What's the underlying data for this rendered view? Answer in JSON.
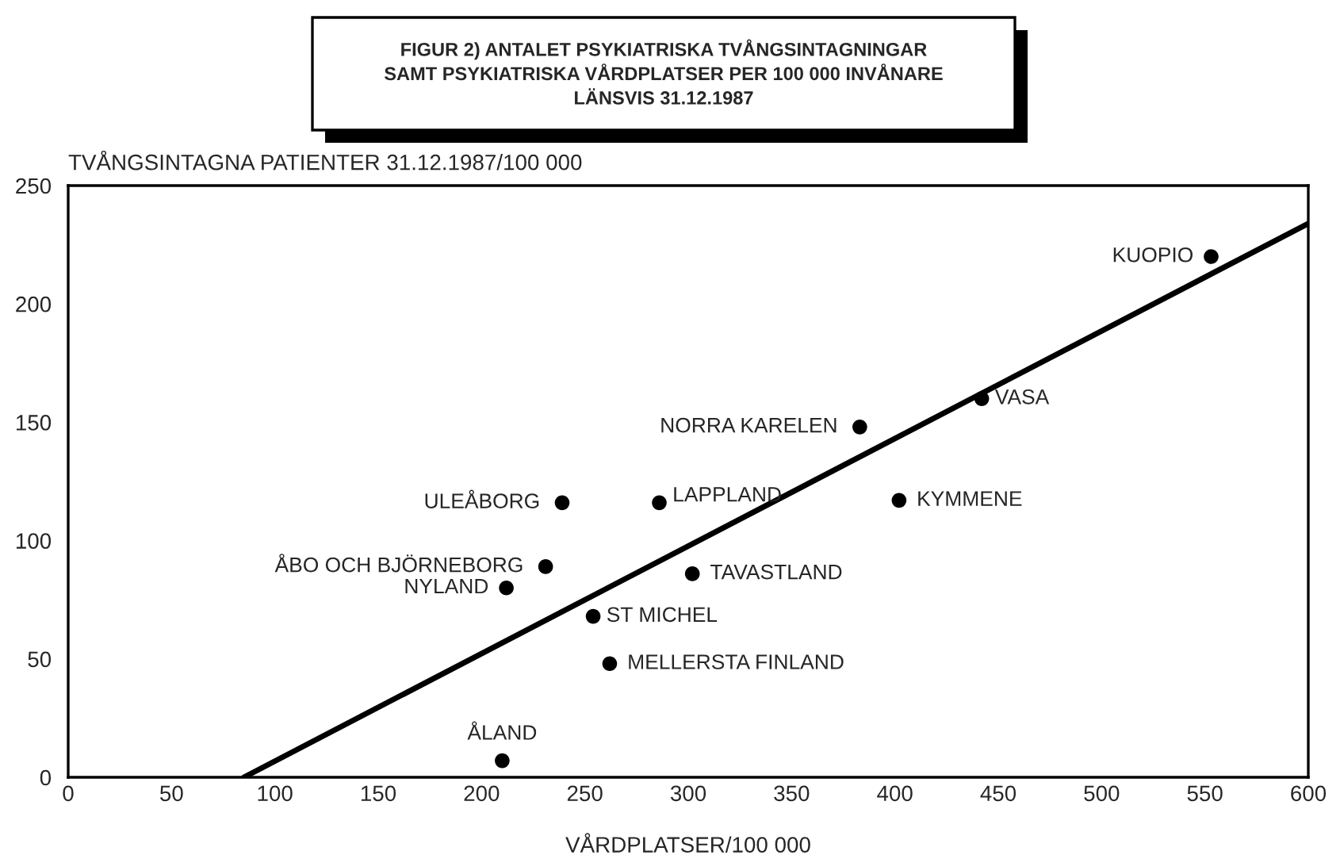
{
  "chart_data": {
    "type": "scatter",
    "title": "FIGUR 2) ANTALET PSYKIATRISKA TVÅNGSINTAGNINGAR\nSAMT PSYKIATRISKA VÅRDPLATSER PER 100 000 INVÅNARE\nLÄNSVIS 31.12.1987",
    "xlabel": "VÅRDPLATSER/100 000",
    "ylabel": "TVÅNGSINTAGNA PATIENTER 31.12.1987/100 000",
    "series": [
      {
        "color": "#000000",
        "marker": "circle",
        "x": [
          553,
          442,
          383,
          402,
          286,
          302,
          239,
          231,
          212,
          254,
          262,
          210
        ],
        "values": [
          220,
          160,
          148,
          117,
          116,
          86,
          116,
          89,
          80,
          68,
          48,
          7
        ]
      },
      {
        "type": "line",
        "color": "#000000",
        "line_style": "solid",
        "marker": "none",
        "x": [
          85,
          600
        ],
        "values": [
          0,
          234
        ]
      }
    ],
    "annotations": [
      {
        "text": "KUOPIO",
        "x": 553,
        "y": 220
      },
      {
        "text": "VASA",
        "x": 442,
        "y": 160
      },
      {
        "text": "NORRA KARELEN",
        "x": 383,
        "y": 148
      },
      {
        "text": "KYMMENE",
        "x": 402,
        "y": 117
      },
      {
        "text": "LAPPLAND",
        "x": 286,
        "y": 116
      },
      {
        "text": "TAVASTLAND",
        "x": 302,
        "y": 86
      },
      {
        "text": "ULEÅBORG",
        "x": 239,
        "y": 116
      },
      {
        "text": "ÅBO OCH BJÖRNEBORG",
        "x": 231,
        "y": 89
      },
      {
        "text": "NYLAND",
        "x": 212,
        "y": 80
      },
      {
        "text": "ST MICHEL",
        "x": 254,
        "y": 68
      },
      {
        "text": "MELLERSTA FINLAND",
        "x": 262,
        "y": 48
      },
      {
        "text": "ÅLAND",
        "x": 210,
        "y": 7
      }
    ],
    "xlim": [
      0,
      600
    ],
    "xticks": [
      0,
      50,
      100,
      150,
      200,
      250,
      300,
      350,
      400,
      450,
      500,
      550,
      600
    ],
    "ylim": [
      0,
      250
    ],
    "yticks": [
      0,
      50,
      100,
      150,
      200,
      250
    ],
    "grid": false,
    "legend": false
  }
}
